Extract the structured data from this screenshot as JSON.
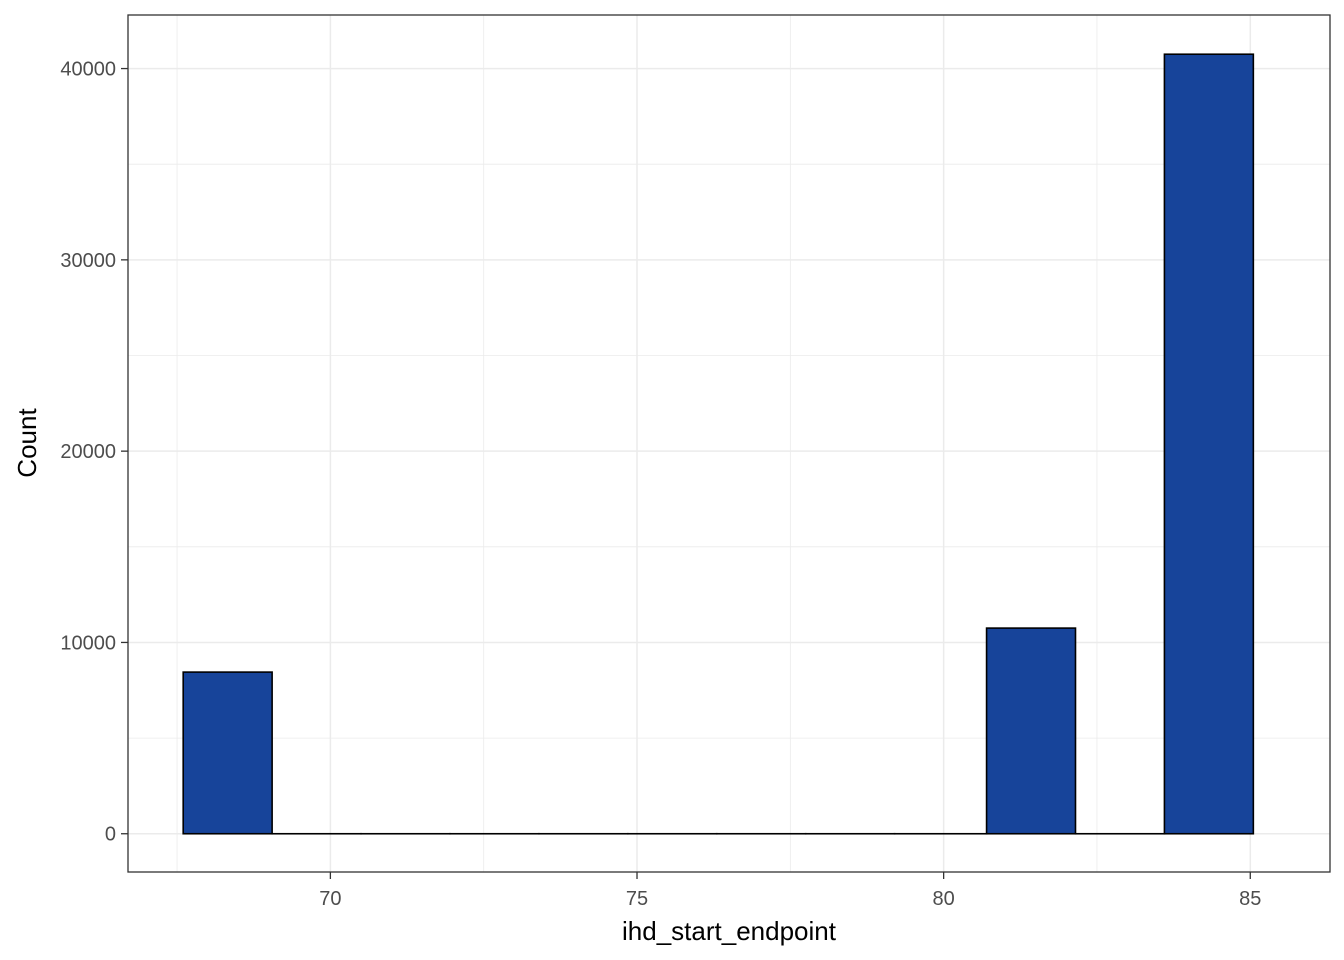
{
  "chart_data": {
    "type": "bar",
    "xlabel": "ihd_start_endpoint",
    "ylabel": "Count",
    "xlim": [
      66.7,
      86.3
    ],
    "ylim": [
      -2000,
      42800
    ],
    "x_ticks": [
      70,
      75,
      80,
      85
    ],
    "x_tick_labels": [
      "70",
      "75",
      "80",
      "85"
    ],
    "y_ticks": [
      0,
      10000,
      20000,
      30000,
      40000
    ],
    "y_tick_labels": [
      "0",
      "10000",
      "20000",
      "30000",
      "40000"
    ],
    "bins": [
      {
        "x0": 67.6,
        "x1": 69.05,
        "count": 8450
      },
      {
        "x0": 69.05,
        "x1": 70.5,
        "count": 0
      },
      {
        "x0": 70.5,
        "x1": 71.95,
        "count": 0
      },
      {
        "x0": 71.95,
        "x1": 73.4,
        "count": 0
      },
      {
        "x0": 73.4,
        "x1": 74.85,
        "count": 0
      },
      {
        "x0": 74.85,
        "x1": 76.3,
        "count": 0
      },
      {
        "x0": 76.3,
        "x1": 77.75,
        "count": 0
      },
      {
        "x0": 77.75,
        "x1": 79.2,
        "count": 0
      },
      {
        "x0": 79.2,
        "x1": 80.7,
        "count": 0
      },
      {
        "x0": 80.7,
        "x1": 82.15,
        "count": 10750
      },
      {
        "x0": 82.15,
        "x1": 83.6,
        "count": 0
      },
      {
        "x0": 83.6,
        "x1": 85.05,
        "count": 40750
      }
    ],
    "grid": true,
    "legend": "none",
    "colors": {
      "bar_fill": "#17449A",
      "bar_stroke": "#000000",
      "grid": "#EBEBEB",
      "panel_border": "#333333",
      "tick_text": "#4D4D4D"
    }
  }
}
